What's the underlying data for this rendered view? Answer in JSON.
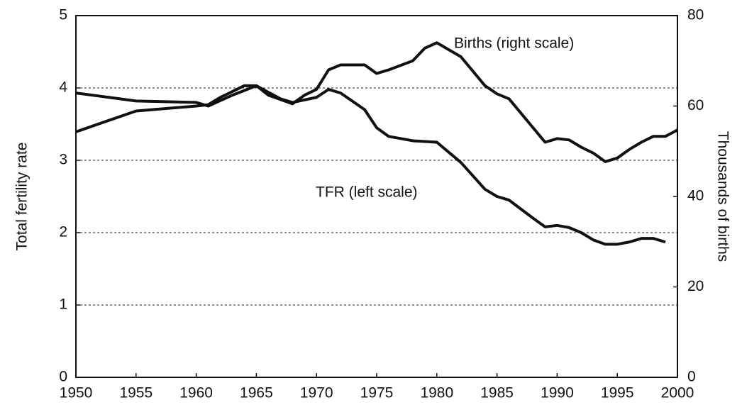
{
  "chart_data": {
    "type": "line",
    "ylabel": "Total fertility rate",
    "y2label": "Thousands of births",
    "annotations": [
      "Births (right scale)",
      "TFR (left scale)"
    ],
    "xlim": [
      1950,
      2000
    ],
    "xticks": [
      1950,
      1955,
      1960,
      1965,
      1970,
      1975,
      1980,
      1985,
      1990,
      1995,
      2000
    ],
    "ylim": [
      0,
      5
    ],
    "yticks": [
      0,
      1,
      2,
      3,
      4,
      5
    ],
    "y2lim": [
      0,
      80
    ],
    "y2ticks": [
      0,
      20,
      40,
      60,
      80
    ],
    "grid": true,
    "series": [
      {
        "name": "TFR (left scale)",
        "color": "#111111",
        "axis": "y",
        "x": [
          1950,
          1955,
          1960,
          1961,
          1963,
          1965,
          1967,
          1968,
          1970,
          1971,
          1972,
          1974,
          1975,
          1976,
          1978,
          1980,
          1982,
          1984,
          1985,
          1986,
          1988,
          1989,
          1990,
          1991,
          1992,
          1993,
          1994,
          1995,
          1996,
          1997,
          1998,
          1999
        ],
        "values": [
          3.93,
          3.82,
          3.8,
          3.75,
          3.9,
          4.03,
          3.85,
          3.8,
          3.87,
          3.98,
          3.93,
          3.7,
          3.45,
          3.33,
          3.27,
          3.25,
          2.97,
          2.6,
          2.5,
          2.45,
          2.2,
          2.08,
          2.1,
          2.07,
          2.0,
          1.9,
          1.84,
          1.84,
          1.87,
          1.92,
          1.92,
          1.87
        ]
      },
      {
        "name": "Births (right scale)",
        "color": "#111111",
        "axis": "y2",
        "x": [
          1950,
          1955,
          1960,
          1961,
          1962,
          1964,
          1965,
          1966,
          1968,
          1969,
          1970,
          1971,
          1972,
          1974,
          1975,
          1976,
          1978,
          1979,
          1980,
          1982,
          1984,
          1985,
          1986,
          1988,
          1989,
          1990,
          1991,
          1992,
          1993,
          1994,
          1995,
          1996,
          1997,
          1998,
          1999,
          2000
        ],
        "values": [
          54.3,
          58.9,
          60,
          60.3,
          61.9,
          64.5,
          64.5,
          62.4,
          60.5,
          62.4,
          63.7,
          68,
          69.1,
          69.1,
          67.2,
          68,
          70,
          72.8,
          74,
          70.9,
          64.5,
          62.7,
          61.6,
          55.2,
          52,
          52.8,
          52.5,
          50.9,
          49.6,
          47.7,
          48.5,
          50.4,
          52,
          53.3,
          53.3,
          54.7
        ]
      }
    ]
  }
}
